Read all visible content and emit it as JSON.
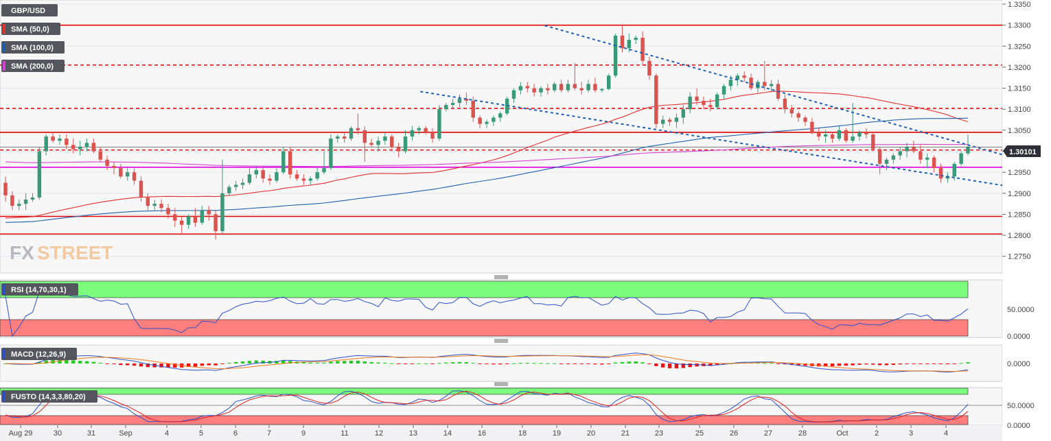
{
  "symbol": "GBP/USD",
  "price_tag": "1.30101",
  "logo_text": {
    "fx": "FX",
    "street": "STREET"
  },
  "legend": [
    {
      "label": "SMA (50,0)",
      "color": "#e03030"
    },
    {
      "label": "SMA (100,0)",
      "color": "#1f5fb0"
    },
    {
      "label": "SMA (200,0)",
      "color": "#d63fd6"
    }
  ],
  "colors": {
    "up": "#3a9a78",
    "down": "#d9534f",
    "resistance": "#e00000",
    "support": "#e000e0",
    "trend": "#1f5fb0",
    "overbought": "#7cfc7c",
    "oversold": "#ff7f7f"
  },
  "x_ticks": [
    "Aug 29",
    "30",
    "31",
    "Sep",
    "4",
    "5",
    "6",
    "7",
    "9",
    "11",
    "12",
    "13",
    "14",
    "16",
    "18",
    "19",
    "20",
    "21",
    "23",
    "25",
    "26",
    "27",
    "28",
    "Oct",
    "2",
    "3",
    "4"
  ],
  "panels": {
    "rsi": {
      "label": "RSI (14,70,30,1)",
      "ticks": [
        "50.0000",
        "0.0000"
      ]
    },
    "macd": {
      "label": "MACD (12,26,9)",
      "ticks": [
        "0.0000"
      ]
    },
    "fusto": {
      "label": "FUSTO (14,3,3,80,20)",
      "ticks": [
        "50.0000",
        "0.0000"
      ]
    }
  },
  "chart_data": {
    "type": "candlestick",
    "y_ticks": [
      "1.3350",
      "1.3300",
      "1.3250",
      "1.3200",
      "1.3150",
      "1.3100",
      "1.3050",
      "1.3000",
      "1.2950",
      "1.2900",
      "1.2850",
      "1.2800",
      "1.2750"
    ],
    "ylim": [
      1.272,
      1.3355
    ],
    "last_price": 1.30101,
    "horizontal_levels": [
      {
        "price": 1.33,
        "style": "solid",
        "color": "#e00000"
      },
      {
        "price": 1.3205,
        "style": "dashed",
        "color": "#e00000"
      },
      {
        "price": 1.3102,
        "style": "dashed",
        "color": "#e00000"
      },
      {
        "price": 1.3045,
        "style": "solid",
        "color": "#e00000"
      },
      {
        "price": 1.3003,
        "style": "dashed",
        "color": "#e00000"
      },
      {
        "price": 1.2962,
        "style": "solid",
        "color": "#e000e0"
      },
      {
        "price": 1.2845,
        "style": "solid",
        "color": "#e00000"
      },
      {
        "price": 1.2803,
        "style": "solid",
        "color": "#e00000"
      }
    ],
    "trendlines": [
      {
        "from": [
          32.5,
          1.3299
        ],
        "to": [
          58.0,
          1.3015
        ]
      },
      {
        "from": [
          25.0,
          1.3142
        ],
        "to": [
          58.0,
          1.2932
        ]
      }
    ],
    "candles": [
      [
        1.2925,
        1.294,
        1.288,
        1.2895
      ],
      [
        1.2895,
        1.2905,
        1.286,
        1.287
      ],
      [
        1.287,
        1.2885,
        1.286,
        1.2875
      ],
      [
        1.2875,
        1.29,
        1.286,
        1.2885
      ],
      [
        1.2885,
        1.29,
        1.288,
        1.289
      ],
      [
        1.289,
        1.301,
        1.2885,
        1.3
      ],
      [
        1.3,
        1.304,
        1.299,
        1.3035
      ],
      [
        1.3035,
        1.3045,
        1.302,
        1.3025
      ],
      [
        1.3025,
        1.304,
        1.3015,
        1.303
      ],
      [
        1.303,
        1.304,
        1.3005,
        1.3015
      ],
      [
        1.3015,
        1.303,
        1.2995,
        1.3005
      ],
      [
        1.3005,
        1.3025,
        1.299,
        1.301
      ],
      [
        1.301,
        1.303,
        1.3,
        1.302
      ],
      [
        1.302,
        1.303,
        1.2995,
        1.3
      ],
      [
        1.3,
        1.301,
        1.2975,
        1.298
      ],
      [
        1.298,
        1.299,
        1.2955,
        1.2965
      ],
      [
        1.2965,
        1.2975,
        1.2945,
        1.296
      ],
      [
        1.296,
        1.297,
        1.2935,
        1.294
      ],
      [
        1.294,
        1.296,
        1.293,
        1.295
      ],
      [
        1.295,
        1.296,
        1.292,
        1.293
      ],
      [
        1.293,
        1.294,
        1.288,
        1.289
      ],
      [
        1.289,
        1.29,
        1.286,
        1.287
      ],
      [
        1.287,
        1.2885,
        1.286,
        1.2875
      ],
      [
        1.2875,
        1.2885,
        1.2855,
        1.2865
      ],
      [
        1.2865,
        1.2875,
        1.284,
        1.285
      ],
      [
        1.285,
        1.2865,
        1.282,
        1.2835
      ],
      [
        1.2835,
        1.2845,
        1.2805,
        1.2825
      ],
      [
        1.2825,
        1.285,
        1.2815,
        1.2845
      ],
      [
        1.2845,
        1.2865,
        1.282,
        1.283
      ],
      [
        1.283,
        1.287,
        1.2825,
        1.286
      ],
      [
        1.286,
        1.287,
        1.2835,
        1.285
      ],
      [
        1.285,
        1.286,
        1.279,
        1.281
      ],
      [
        1.281,
        1.298,
        1.2805,
        1.29
      ],
      [
        1.29,
        1.292,
        1.2895,
        1.2915
      ],
      [
        1.2915,
        1.293,
        1.2905,
        1.292
      ],
      [
        1.292,
        1.2935,
        1.291,
        1.2925
      ],
      [
        1.2925,
        1.296,
        1.292,
        1.2945
      ],
      [
        1.2945,
        1.2965,
        1.2935,
        1.2955
      ],
      [
        1.2955,
        1.296,
        1.2925,
        1.2935
      ],
      [
        1.2935,
        1.2945,
        1.292,
        1.293
      ],
      [
        1.293,
        1.296,
        1.2925,
        1.295
      ],
      [
        1.295,
        1.301,
        1.2945,
        1.3
      ],
      [
        1.3,
        1.301,
        1.2935,
        1.2945
      ],
      [
        1.2945,
        1.2955,
        1.293,
        1.2935
      ],
      [
        1.2935,
        1.2945,
        1.292,
        1.293
      ],
      [
        1.293,
        1.294,
        1.292,
        1.2935
      ],
      [
        1.2935,
        1.296,
        1.293,
        1.295
      ],
      [
        1.295,
        1.3,
        1.2945,
        1.296
      ],
      [
        1.296,
        1.304,
        1.2955,
        1.303
      ],
      [
        1.303,
        1.304,
        1.302,
        1.3035
      ],
      [
        1.3035,
        1.3045,
        1.302,
        1.303
      ],
      [
        1.303,
        1.306,
        1.3025,
        1.3055
      ],
      [
        1.3055,
        1.309,
        1.304,
        1.305
      ],
      [
        1.305,
        1.306,
        1.2975,
        1.302
      ]
    ],
    "candles_tail": [
      [
        1.302,
        1.303,
        1.301,
        1.3015
      ],
      [
        1.3015,
        1.3035,
        1.3,
        1.3025
      ],
      [
        1.3025,
        1.3045,
        1.3015,
        1.3035
      ],
      [
        1.3035,
        1.304,
        1.3,
        1.301
      ],
      [
        1.301,
        1.302,
        1.2985,
        1.3
      ],
      [
        1.3,
        1.305,
        1.2995,
        1.3035
      ],
      [
        1.3035,
        1.306,
        1.3025,
        1.305
      ],
      [
        1.305,
        1.306,
        1.304,
        1.3055
      ],
      [
        1.3055,
        1.306,
        1.304,
        1.3045
      ],
      [
        1.3045,
        1.3055,
        1.302,
        1.303
      ],
      [
        1.303,
        1.311,
        1.3025,
        1.31
      ],
      [
        1.31,
        1.3115,
        1.3095,
        1.311
      ],
      [
        1.311,
        1.3125,
        1.31,
        1.3115
      ],
      [
        1.3115,
        1.3135,
        1.3105,
        1.3125
      ],
      [
        1.3125,
        1.314,
        1.311,
        1.312
      ],
      [
        1.312,
        1.313,
        1.307,
        1.308
      ],
      [
        1.308,
        1.3085,
        1.3055,
        1.3065
      ],
      [
        1.3065,
        1.3075,
        1.3055,
        1.307
      ],
      [
        1.307,
        1.3085,
        1.306,
        1.308
      ],
      [
        1.308,
        1.3095,
        1.307,
        1.309
      ],
      [
        1.309,
        1.313,
        1.3085,
        1.3125
      ],
      [
        1.3125,
        1.315,
        1.3115,
        1.3145
      ],
      [
        1.3145,
        1.3165,
        1.3135,
        1.3155
      ],
      [
        1.3155,
        1.3165,
        1.314,
        1.315
      ],
      [
        1.315,
        1.316,
        1.313,
        1.314
      ],
      [
        1.314,
        1.3155,
        1.313,
        1.315
      ],
      [
        1.315,
        1.316,
        1.3135,
        1.3145
      ],
      [
        1.3145,
        1.3165,
        1.314,
        1.316
      ],
      [
        1.316,
        1.317,
        1.314,
        1.3145
      ],
      [
        1.3145,
        1.317,
        1.314,
        1.316
      ],
      [
        1.316,
        1.321,
        1.3145,
        1.315
      ],
      [
        1.315,
        1.3165,
        1.3135,
        1.3145
      ],
      [
        1.3145,
        1.317,
        1.314,
        1.316
      ],
      [
        1.316,
        1.3175,
        1.314,
        1.3145
      ],
      [
        1.3145,
        1.315,
        1.314,
        1.3148
      ],
      [
        1.3148,
        1.3185,
        1.3145,
        1.318
      ],
      [
        1.318,
        1.328,
        1.3175,
        1.3275
      ],
      [
        1.3275,
        1.33,
        1.3235,
        1.3245
      ],
      [
        1.3245,
        1.328,
        1.3235,
        1.3265
      ],
      [
        1.3265,
        1.3275,
        1.3255,
        1.327
      ],
      [
        1.327,
        1.3285,
        1.3205,
        1.3215
      ],
      [
        1.3215,
        1.3225,
        1.317,
        1.318
      ],
      [
        1.318,
        1.3185,
        1.3055,
        1.3065
      ],
      [
        1.3065,
        1.3085,
        1.3055,
        1.3075
      ],
      [
        1.3075,
        1.308,
        1.306,
        1.307
      ],
      [
        1.307,
        1.309,
        1.3055,
        1.308
      ],
      [
        1.308,
        1.311,
        1.3065,
        1.31
      ],
      [
        1.31,
        1.314,
        1.309,
        1.313
      ],
      [
        1.313,
        1.315,
        1.311,
        1.312
      ],
      [
        1.312,
        1.313,
        1.31,
        1.311
      ],
      [
        1.311,
        1.3125,
        1.3095,
        1.3105
      ],
      [
        1.3105,
        1.314,
        1.31,
        1.3135
      ],
      [
        1.3135,
        1.316,
        1.3125,
        1.3155
      ],
      [
        1.3155,
        1.318,
        1.3145,
        1.317
      ]
    ],
    "candles_end": [
      [
        1.317,
        1.3185,
        1.3155,
        1.318
      ],
      [
        1.318,
        1.319,
        1.3165,
        1.3175
      ],
      [
        1.3175,
        1.3185,
        1.3145,
        1.315
      ],
      [
        1.315,
        1.317,
        1.314,
        1.3165
      ],
      [
        1.3165,
        1.3215,
        1.3145,
        1.3155
      ],
      [
        1.3155,
        1.317,
        1.314,
        1.316
      ],
      [
        1.316,
        1.317,
        1.312,
        1.3125
      ],
      [
        1.3125,
        1.3135,
        1.309,
        1.31
      ],
      [
        1.31,
        1.311,
        1.308,
        1.309
      ],
      [
        1.309,
        1.3095,
        1.307,
        1.308
      ],
      [
        1.308,
        1.3085,
        1.306,
        1.307
      ],
      [
        1.307,
        1.308,
        1.304,
        1.3045
      ],
      [
        1.3045,
        1.3055,
        1.3025,
        1.3035
      ],
      [
        1.3035,
        1.305,
        1.302,
        1.304
      ],
      [
        1.304,
        1.3045,
        1.302,
        1.303
      ],
      [
        1.303,
        1.306,
        1.3025,
        1.305
      ],
      [
        1.305,
        1.3055,
        1.302,
        1.3025
      ],
      [
        1.3025,
        1.3115,
        1.302,
        1.3035
      ],
      [
        1.3035,
        1.305,
        1.3025,
        1.3045
      ],
      [
        1.3045,
        1.3055,
        1.303,
        1.304
      ],
      [
        1.304,
        1.3045,
        1.3,
        1.3005
      ],
      [
        1.3005,
        1.301,
        1.2945,
        1.297
      ],
      [
        1.297,
        1.2985,
        1.2955,
        1.298
      ],
      [
        1.298,
        1.2995,
        1.297,
        1.299
      ],
      [
        1.299,
        1.301,
        1.298,
        1.3
      ],
      [
        1.3,
        1.302,
        1.2985,
        1.301
      ],
      [
        1.301,
        1.3025,
        1.2995,
        1.3
      ],
      [
        1.3,
        1.3015,
        1.297,
        1.298
      ],
      [
        1.298,
        1.2995,
        1.296,
        1.2985
      ],
      [
        1.2985,
        1.299,
        1.295,
        1.296
      ],
      [
        1.296,
        1.297,
        1.2925,
        1.2935
      ],
      [
        1.2935,
        1.295,
        1.2925,
        1.294
      ],
      [
        1.294,
        1.2975,
        1.293,
        1.297
      ],
      [
        1.297,
        1.3,
        1.2965,
        1.2995
      ],
      [
        1.2995,
        1.304,
        1.299,
        1.301
      ]
    ]
  }
}
